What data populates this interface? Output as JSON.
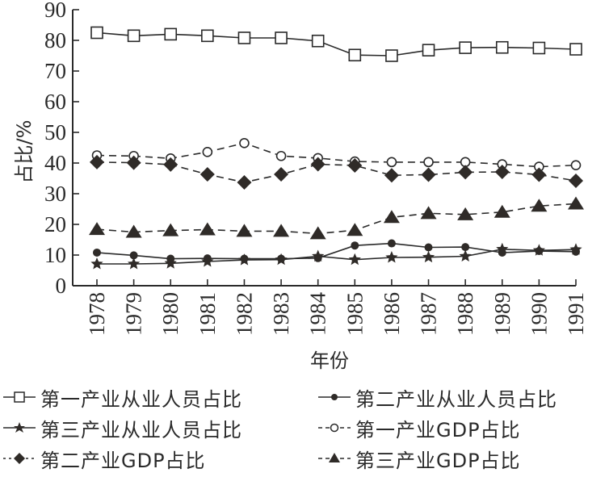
{
  "chart_data": {
    "type": "line",
    "title": "",
    "xlabel": "年份",
    "ylabel": "占比/%",
    "ylim": [
      0,
      90
    ],
    "yticks": [
      0,
      10,
      20,
      30,
      40,
      50,
      60,
      70,
      80,
      90
    ],
    "grid": false,
    "legend_position": "bottom",
    "categories": [
      "1978",
      "1979",
      "1980",
      "1981",
      "1982",
      "1983",
      "1984",
      "1985",
      "1986",
      "1987",
      "1988",
      "1989",
      "1990",
      "1991"
    ],
    "series": [
      {
        "name": "第一产业从业人员占比",
        "marker": "square-open",
        "line": "solid",
        "values": [
          82.5,
          81.5,
          82.0,
          81.5,
          80.8,
          80.8,
          79.8,
          75.2,
          75.0,
          76.8,
          77.6,
          77.7,
          77.5,
          77.1
        ]
      },
      {
        "name": "第二产业从业人员占比",
        "marker": "circle-filled",
        "line": "solid",
        "values": [
          10.8,
          9.9,
          8.8,
          8.9,
          8.8,
          8.8,
          9.0,
          13.1,
          13.8,
          12.5,
          12.6,
          10.8,
          11.3,
          11.1
        ]
      },
      {
        "name": "第三产业从业人员占比",
        "marker": "star-filled",
        "line": "solid",
        "values": [
          7.1,
          7.1,
          7.3,
          7.9,
          8.4,
          8.5,
          9.6,
          8.5,
          9.2,
          9.3,
          9.6,
          11.9,
          11.5,
          11.8
        ]
      },
      {
        "name": "第一产业GDP占比",
        "marker": "circle-open",
        "line": "dashed",
        "values": [
          42.5,
          42.3,
          41.5,
          43.6,
          46.5,
          42.3,
          41.6,
          40.5,
          40.3,
          40.3,
          40.3,
          39.6,
          38.8,
          39.3
        ]
      },
      {
        "name": "第二产业GDP占比",
        "marker": "diamond-filled",
        "line": "dashed",
        "values": [
          40.3,
          40.1,
          39.5,
          36.3,
          33.7,
          36.3,
          39.6,
          39.2,
          36.0,
          36.2,
          37.0,
          37.1,
          36.2,
          34.2
        ]
      },
      {
        "name": "第三产业GDP占比",
        "marker": "triangle-filled",
        "line": "dashed",
        "values": [
          18.4,
          17.5,
          18.0,
          18.3,
          17.8,
          17.8,
          17.0,
          18.1,
          22.3,
          23.6,
          23.2,
          24.0,
          26.0,
          26.7
        ]
      }
    ]
  },
  "colors": {
    "ink": "#2a2a2a",
    "marker_fill_dark": "#2f2b28",
    "background": "#ffffff"
  },
  "legend": {
    "items": [
      {
        "label": "第一产业从业人员占比",
        "icon": "square-open-solid-line"
      },
      {
        "label": "第二产业从业人员占比",
        "icon": "circle-filled-solid-line"
      },
      {
        "label": "第三产业从业人员占比",
        "icon": "star-filled-solid-line"
      },
      {
        "label": "第一产业GDP占比",
        "icon": "circle-open-dashed-line"
      },
      {
        "label": "第二产业GDP占比",
        "icon": "diamond-filled-dashed-line"
      },
      {
        "label": "第三产业GDP占比",
        "icon": "triangle-filled-dashed-line"
      }
    ]
  }
}
